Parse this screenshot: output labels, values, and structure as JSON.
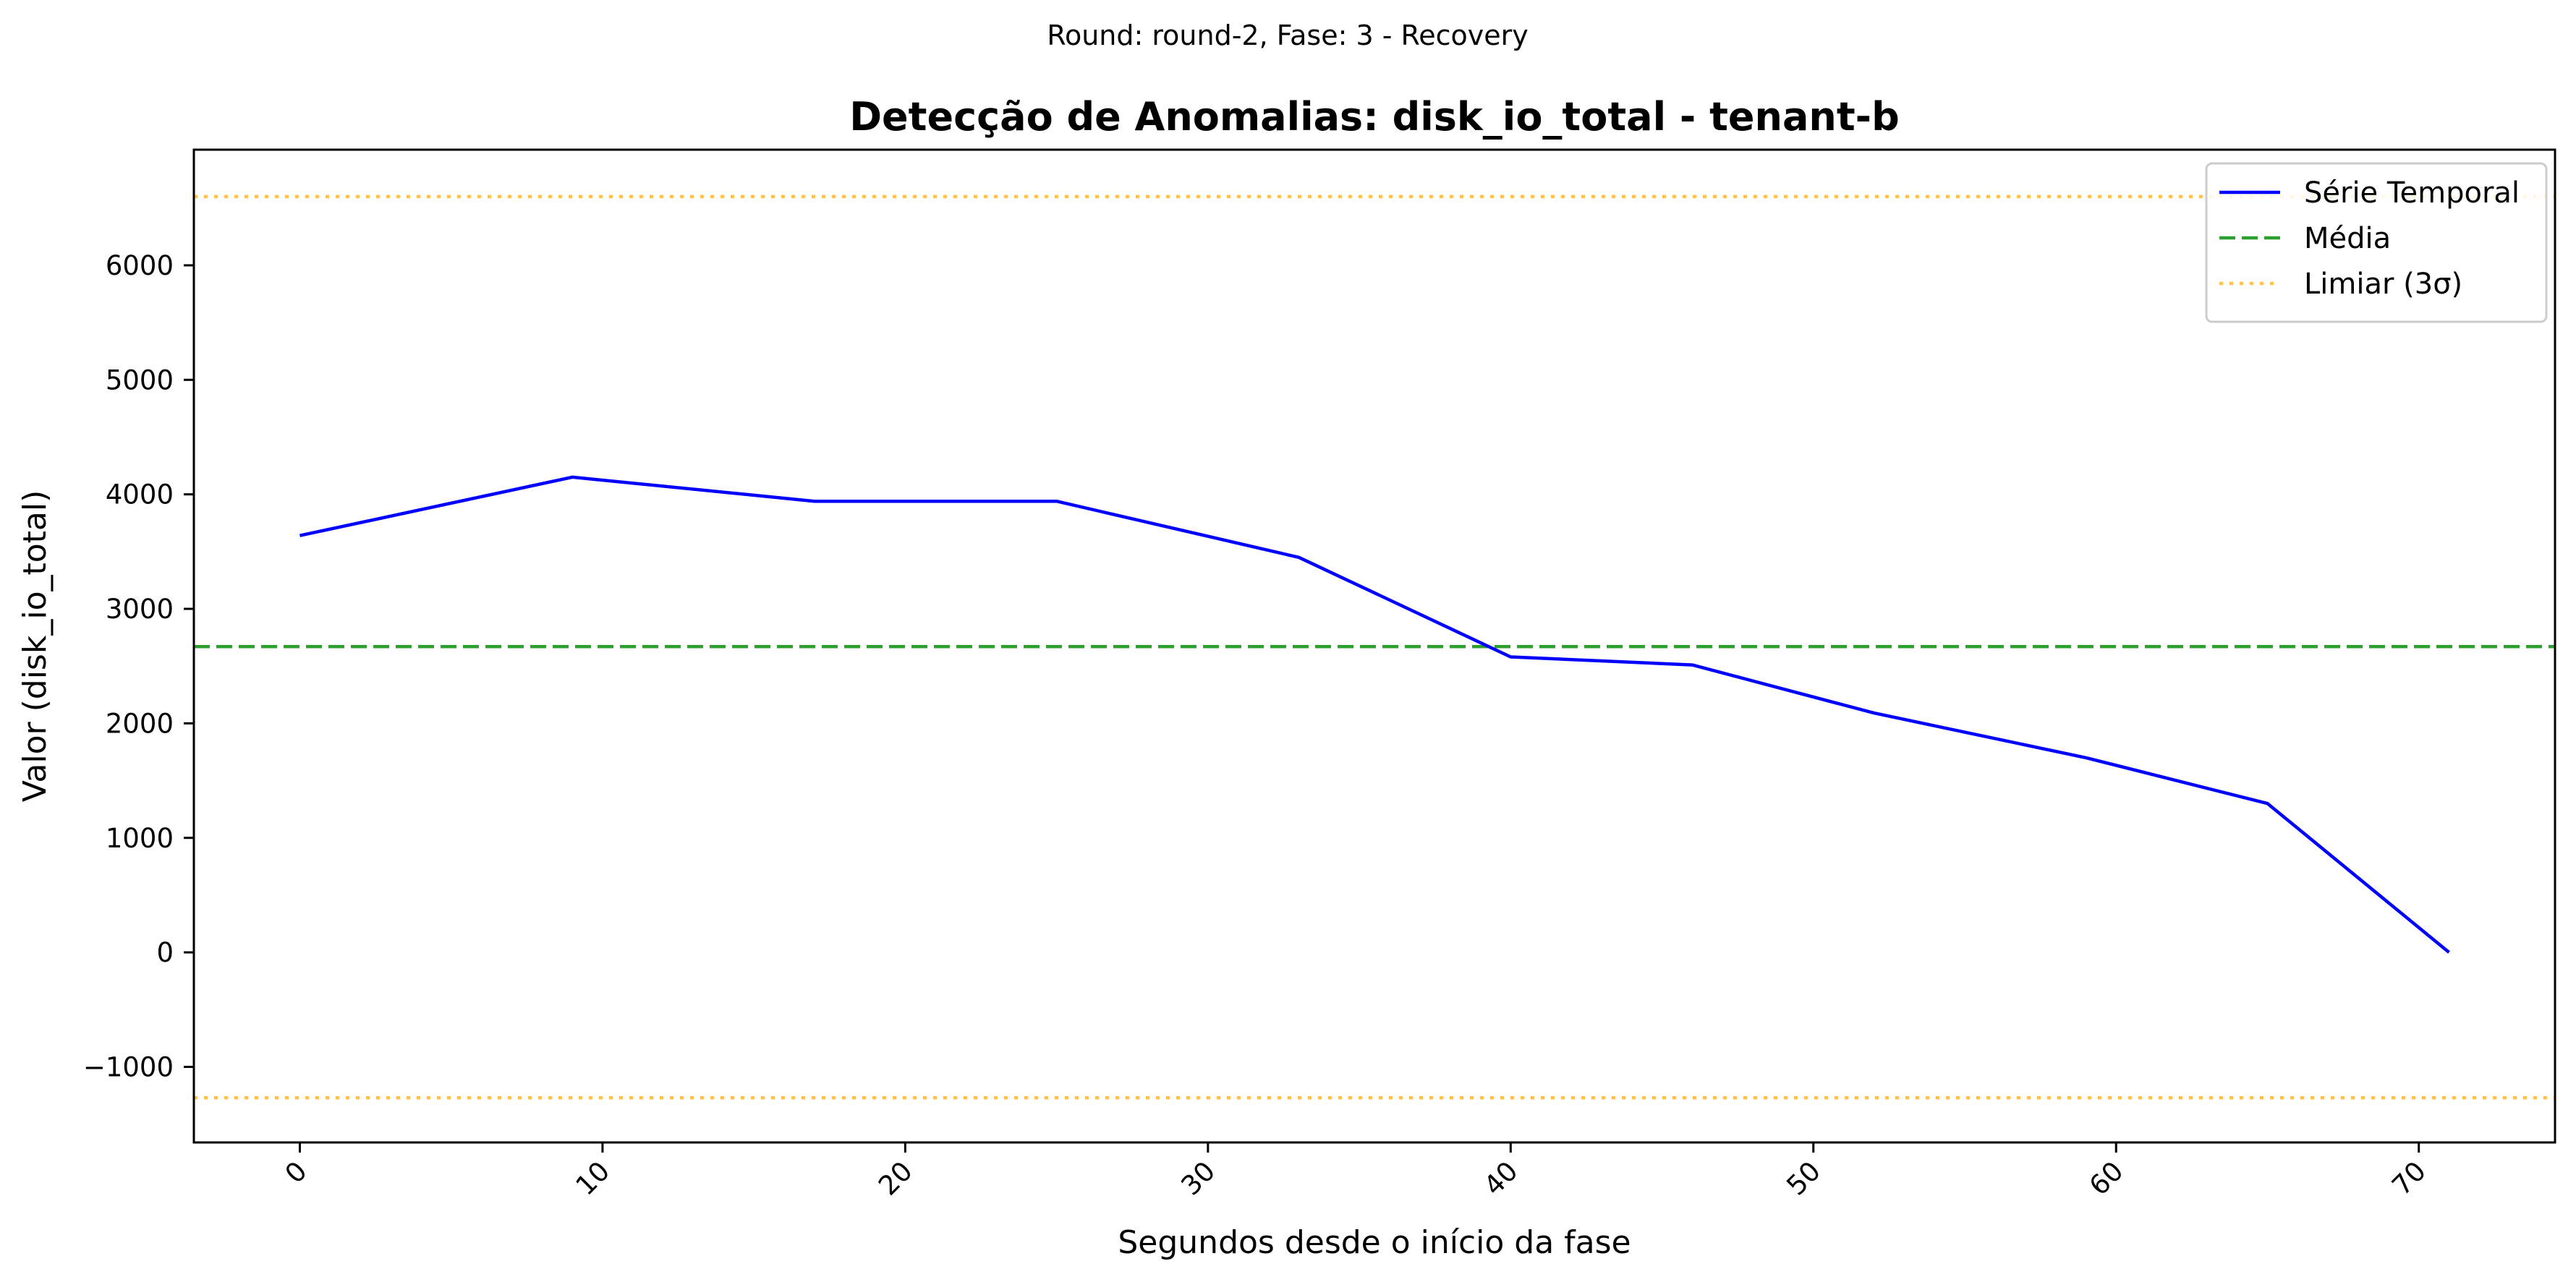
{
  "suptitle": "Round: round-2, Fase: 3 - Recovery",
  "chart_data": {
    "type": "line",
    "title": "Detecção de Anomalias: disk_io_total - tenant-b",
    "xlabel": "Segundos desde o início da fase",
    "ylabel": "Valor (disk_io_total)",
    "xlim": [
      -3.5,
      74.5
    ],
    "ylim": [
      -1660,
      7010
    ],
    "x_ticks": [
      0,
      10,
      20,
      30,
      40,
      50,
      60,
      70
    ],
    "x_tick_labels": [
      "0",
      "10",
      "20",
      "30",
      "40",
      "50",
      "60",
      "70"
    ],
    "y_ticks": [
      -1000,
      0,
      1000,
      2000,
      3000,
      4000,
      5000,
      6000
    ],
    "y_tick_labels": [
      "−1000",
      "0",
      "1000",
      "2000",
      "3000",
      "4000",
      "5000",
      "6000"
    ],
    "grid": false,
    "legend_position": "upper right",
    "series": [
      {
        "name": "Série Temporal",
        "color": "#0000ff",
        "style": "solid",
        "x": [
          0,
          9,
          17,
          25,
          33,
          40,
          46,
          52,
          59,
          65,
          71
        ],
        "y": [
          3640,
          4150,
          3940,
          3940,
          3450,
          2580,
          2510,
          2090,
          1700,
          1300,
          0
        ]
      }
    ],
    "reference_lines": [
      {
        "name": "Média",
        "color": "#2ca02c",
        "style": "dashed",
        "y": 2670
      },
      {
        "name": "Limiar (3σ)",
        "color": "#ffc04d",
        "style": "dotted",
        "y": 6600
      },
      {
        "name": "Limiar (3σ) inferior",
        "color": "#ffc04d",
        "style": "dotted",
        "y": -1270
      }
    ],
    "legend": [
      {
        "label": "Série Temporal",
        "color": "#0000ff",
        "style": "solid"
      },
      {
        "label": "Média",
        "color": "#2ca02c",
        "style": "dashed"
      },
      {
        "label": "Limiar (3σ)",
        "color": "#ffc04d",
        "style": "dotted"
      }
    ]
  }
}
